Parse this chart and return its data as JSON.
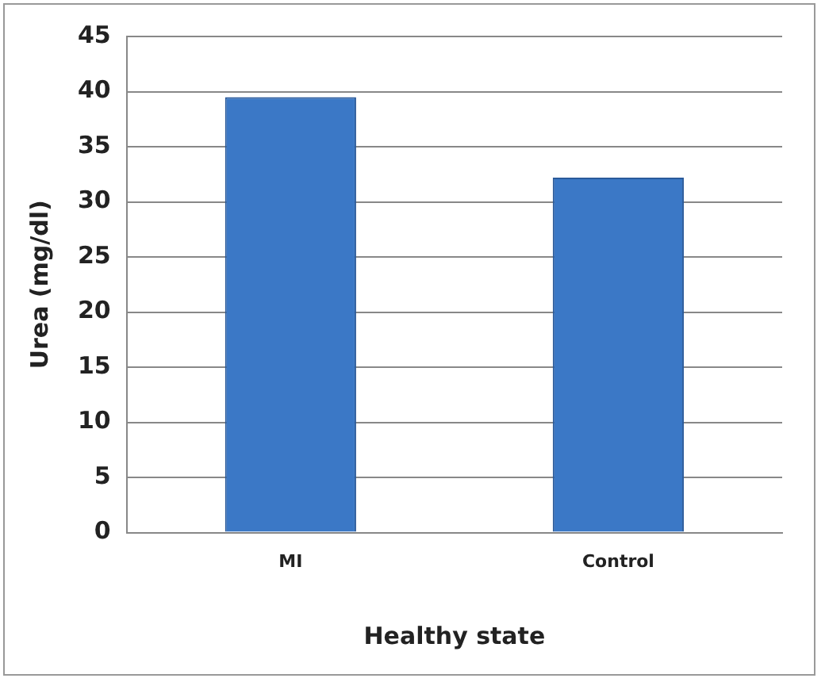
{
  "chart_data": {
    "type": "bar",
    "xlabel": "Healthy state",
    "ylabel": "Urea (mg/dl)",
    "categories": [
      "MI",
      "Control"
    ],
    "values": [
      39.5,
      32.2
    ],
    "color": "#3b78c6",
    "ylim": [
      0,
      45
    ],
    "yticks": [
      0,
      5,
      10,
      15,
      20,
      25,
      30,
      35,
      40,
      45
    ],
    "grid": "y"
  }
}
